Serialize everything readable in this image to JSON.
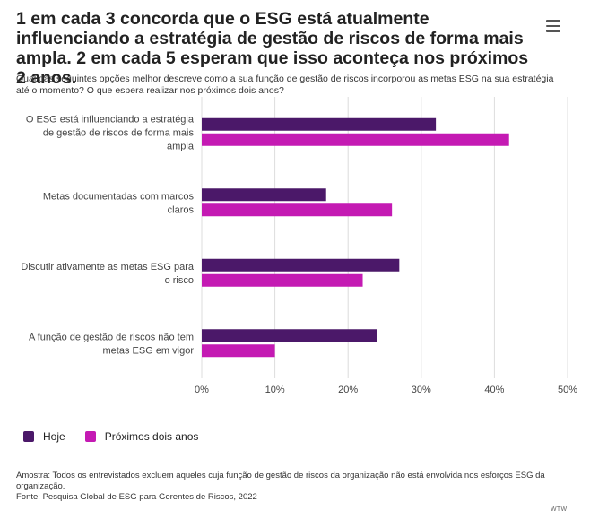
{
  "title": "1 em cada 3 concorda que o ESG está atualmente influenciando a estratégia de gestão de riscos de forma mais ampla. 2 em cada 5 esperam que isso aconteça nos próximos 2 anos.",
  "subtitle": "Qual das seguintes opções melhor descreve como a sua função de gestão de riscos incorporou as metas ESG na sua estratégia até o momento? O que espera realizar nos próximos dois anos?",
  "menu_icon": "hamburger-menu-icon",
  "colors": {
    "hoje": "#4b1869",
    "proximos": "#c41ab3",
    "grid": "#dcdcdc"
  },
  "chart_data": {
    "type": "bar",
    "orientation": "horizontal",
    "categories": [
      [
        "O ESG está influenciando a estratégia",
        "de gestão de riscos de forma mais",
        "ampla"
      ],
      [
        "Metas documentadas com marcos",
        "claros"
      ],
      [
        "Discutir ativamente as metas ESG para",
        "o risco"
      ],
      [
        "A função de gestão de riscos não tem",
        "metas ESG em vigor"
      ]
    ],
    "series": [
      {
        "name": "Hoje",
        "values": [
          32,
          17,
          27,
          24
        ]
      },
      {
        "name": "Próximos dois anos",
        "values": [
          42,
          26,
          22,
          10
        ]
      }
    ],
    "xlim": [
      0,
      50
    ],
    "xticks": [
      "0%",
      "10%",
      "20%",
      "30%",
      "40%",
      "50%"
    ],
    "grid": true,
    "legend_position": "bottom-left"
  },
  "legend": {
    "hoje": "Hoje",
    "proximos": "Próximos dois anos"
  },
  "footnote": {
    "amostra": "Amostra: Todos os entrevistados excluem aqueles cuja função de gestão de riscos da organização não está envolvida nos esforços ESG da organização.",
    "fonte": "Fonte: Pesquisa Global de ESG para Gerentes de Riscos, 2022"
  },
  "credit": "WTW"
}
